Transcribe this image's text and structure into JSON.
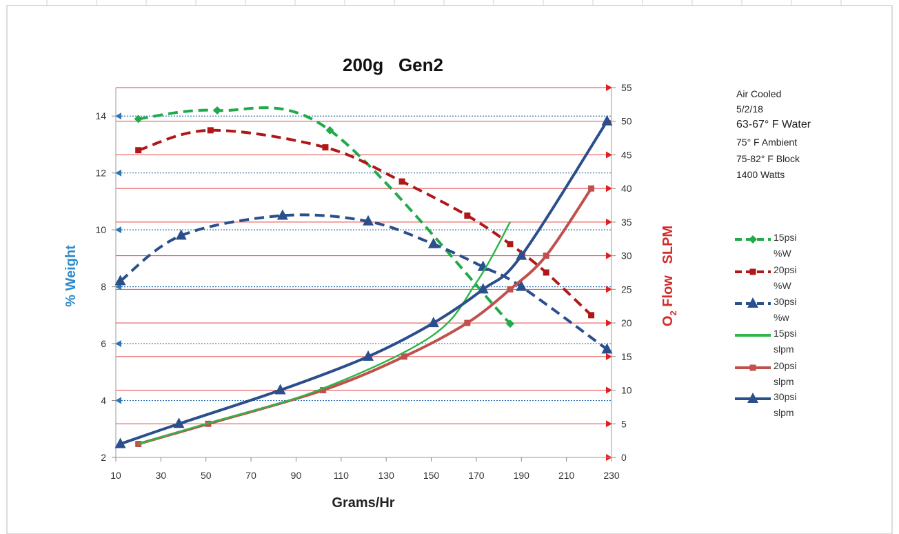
{
  "chart_data": {
    "type": "line",
    "title": "200g   Gen2",
    "xlabel": "Grams/Hr",
    "ylabel_left": "% Weight",
    "ylabel_right_main": "O",
    "ylabel_right_sub": "2",
    "ylabel_right_rest": " Flow   SLPM",
    "xlim": [
      10,
      230
    ],
    "x_ticks": [
      "10",
      "30",
      "50",
      "70",
      "90",
      "110",
      "130",
      "150",
      "170",
      "190",
      "210",
      "230"
    ],
    "ylim_left": [
      2,
      15
    ],
    "y_left_ticks": [
      "2",
      "4",
      "6",
      "8",
      "10",
      "12",
      "14"
    ],
    "ylim_right": [
      0,
      55
    ],
    "y_right_ticks": [
      "0",
      "5",
      "10",
      "15",
      "20",
      "25",
      "30",
      "35",
      "40",
      "45",
      "50",
      "55"
    ],
    "gridlines_left": "dotted-blue",
    "gridlines_right": "solid-red",
    "series": [
      {
        "name": "15psi %W",
        "axis": "left",
        "style": "dashed",
        "color": "#21a94a",
        "marker": "diamond",
        "x": [
          20,
          55,
          105,
          185
        ],
        "y": [
          13.9,
          14.2,
          13.5,
          6.7
        ]
      },
      {
        "name": "20psi %W",
        "axis": "left",
        "style": "dashed",
        "color": "#b01818",
        "marker": "square",
        "x": [
          20,
          52,
          103,
          137,
          166,
          185,
          201,
          221
        ],
        "y": [
          12.8,
          13.5,
          12.9,
          11.7,
          10.5,
          9.5,
          8.5,
          7.0
        ]
      },
      {
        "name": "30psi %w",
        "axis": "left",
        "style": "dashed",
        "color": "#2a4f8c",
        "marker": "triangle",
        "x": [
          12,
          39,
          84,
          122,
          151,
          173,
          190,
          228
        ],
        "y": [
          8.2,
          9.8,
          10.5,
          10.3,
          9.5,
          8.7,
          8.0,
          5.8
        ]
      },
      {
        "name": "15psi slpm",
        "axis": "right",
        "style": "solid",
        "color": "#2fb648",
        "marker": "none",
        "x": [
          20,
          50,
          100,
          150,
          170,
          185
        ],
        "y": [
          2,
          5,
          10,
          18,
          26,
          35
        ]
      },
      {
        "name": "20psi slpm",
        "axis": "right",
        "style": "solid",
        "color": "#c0504d",
        "marker": "square",
        "x": [
          20,
          51,
          102,
          138,
          166,
          185,
          201,
          221
        ],
        "y": [
          2,
          5,
          10,
          15,
          20,
          25,
          30,
          40
        ]
      },
      {
        "name": "30psi slpm",
        "axis": "right",
        "style": "solid",
        "color": "#2a4f8c",
        "marker": "triangle",
        "x": [
          12,
          38,
          83,
          122,
          151,
          173,
          190,
          228
        ],
        "y": [
          2,
          5,
          10,
          15,
          20,
          25,
          30,
          50
        ]
      }
    ],
    "legend_position": "right",
    "legend": [
      {
        "label": "15psi",
        "sub": "%W"
      },
      {
        "label": "20psi",
        "sub": "%W"
      },
      {
        "label": "30psi",
        "sub": "%w"
      },
      {
        "label": "15psi",
        "sub": "slpm"
      },
      {
        "label": "20psi",
        "sub": "slpm"
      },
      {
        "label": "30psi",
        "sub": "slpm"
      }
    ]
  },
  "notes": [
    "Air Cooled",
    "5/2/18",
    "63-67° F Water",
    "75° F Ambient",
    "75-82° F Block",
    "1400 Watts"
  ]
}
